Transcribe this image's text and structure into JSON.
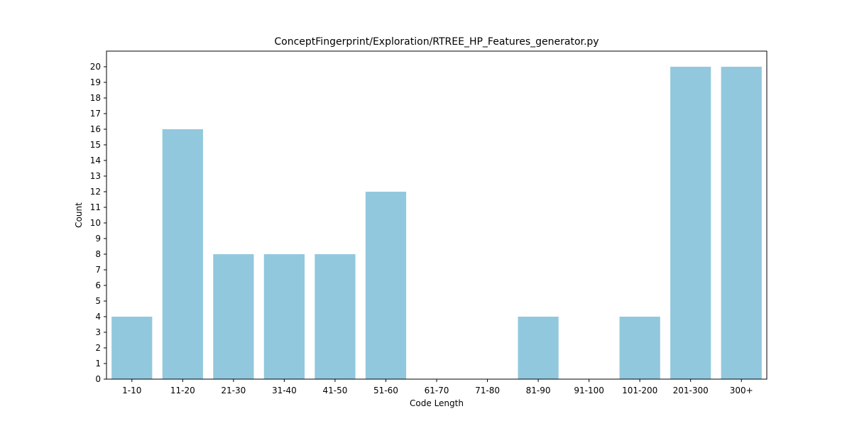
{
  "chart_data": {
    "type": "bar",
    "title": "ConceptFingerprint/Exploration/RTREE_HP_Features_generator.py",
    "xlabel": "Code Length",
    "ylabel": "Count",
    "categories": [
      "1-10",
      "11-20",
      "21-30",
      "31-40",
      "41-50",
      "51-60",
      "61-70",
      "71-80",
      "81-90",
      "91-100",
      "101-200",
      "201-300",
      "300+"
    ],
    "values": [
      4,
      16,
      8,
      8,
      8,
      12,
      0,
      0,
      4,
      0,
      4,
      20,
      20
    ],
    "ylim": [
      0,
      21
    ],
    "yticks": [
      0,
      1,
      2,
      3,
      4,
      5,
      6,
      7,
      8,
      9,
      10,
      11,
      12,
      13,
      14,
      15,
      16,
      17,
      18,
      19,
      20
    ],
    "bar_color": "#92c8de",
    "grid": false
  }
}
